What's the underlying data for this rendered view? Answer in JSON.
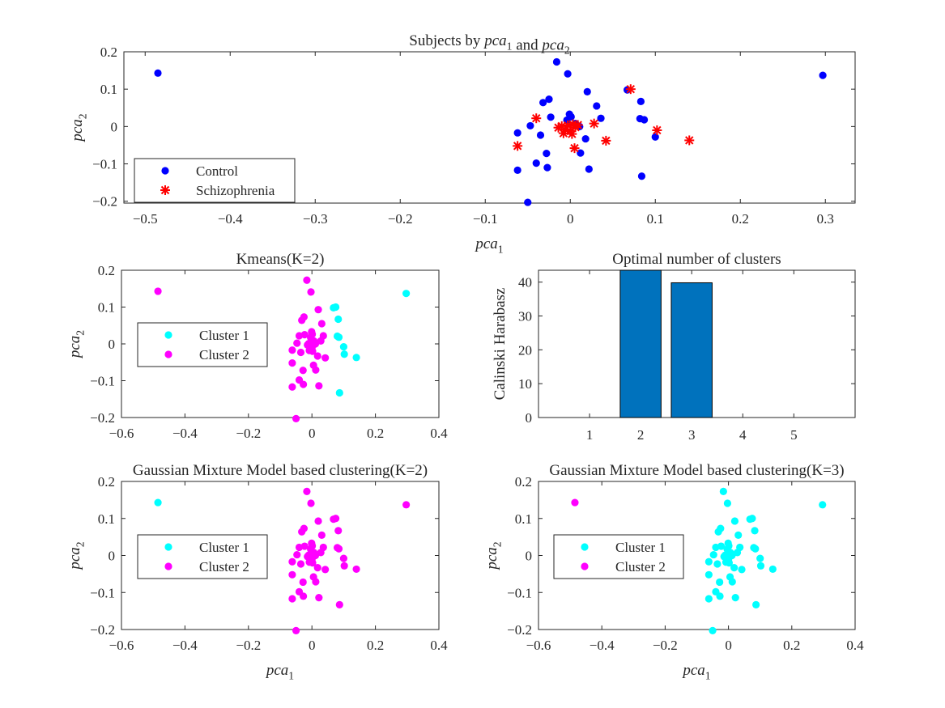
{
  "chart_data": [
    {
      "id": "top",
      "type": "scatter",
      "title": "Subjects by pca1 and pca2",
      "xlabel": "pca1",
      "ylabel": "pca2",
      "xlim": [
        -0.525,
        0.335
      ],
      "ylim": [
        -0.205,
        0.2
      ],
      "xticks": [
        -0.5,
        -0.4,
        -0.3,
        -0.2,
        -0.1,
        0,
        0.1,
        0.2,
        0.3
      ],
      "yticks": [
        -0.2,
        -0.1,
        0,
        0.1,
        0.2
      ],
      "legend": {
        "position": "bottom-left",
        "entries": [
          "Control",
          "Schizophrenia"
        ]
      },
      "series": [
        {
          "name": "Control",
          "marker": "dot",
          "color": "#0000ff",
          "x": [
            -0.485,
            -0.016,
            -0.003,
            0.02,
            0.067,
            0.083,
            -0.025,
            0.031,
            -0.032,
            -0.062,
            -0.047,
            -0.023,
            -0.035,
            -0.001,
            0.001,
            -0.004,
            0.006,
            0.011,
            0.036,
            0.082,
            0.087,
            -0.062,
            -0.028,
            0.018,
            -0.04,
            -0.027,
            0.012,
            0.022,
            0.084,
            0.1,
            0.297,
            -0.05
          ],
          "y": [
            0.143,
            0.173,
            0.141,
            0.093,
            0.098,
            0.067,
            0.073,
            0.055,
            0.064,
            -0.017,
            0.002,
            0.025,
            -0.023,
            0.033,
            0.026,
            0.017,
            0.008,
            0.0,
            0.022,
            0.021,
            0.018,
            -0.117,
            -0.072,
            -0.033,
            -0.098,
            -0.11,
            -0.071,
            -0.114,
            -0.133,
            -0.028,
            0.137,
            -0.203
          ]
        },
        {
          "name": "Schizophrenia",
          "marker": "asterisk",
          "color": "#ff0000",
          "x": [
            0.071,
            -0.04,
            -0.062,
            -0.014,
            -0.01,
            -0.006,
            -0.003,
            0.0,
            0.003,
            0.006,
            0.009,
            -0.008,
            0.002,
            0.028,
            0.005,
            0.042,
            0.102,
            0.14
          ],
          "y": [
            0.1,
            0.022,
            -0.052,
            -0.003,
            0.001,
            -0.008,
            0.003,
            -0.012,
            0.006,
            -0.002,
            0.004,
            -0.018,
            -0.02,
            0.008,
            -0.058,
            -0.038,
            -0.01,
            -0.037
          ]
        }
      ]
    },
    {
      "id": "kmeans",
      "type": "scatter",
      "title": "Kmeans(K=2)",
      "xlabel": "",
      "ylabel": "pca2",
      "xlim": [
        -0.6,
        0.4
      ],
      "ylim": [
        -0.2,
        0.2
      ],
      "xticks": [
        -0.6,
        -0.4,
        -0.2,
        0,
        0.2,
        0.4
      ],
      "yticks": [
        -0.2,
        -0.1,
        0,
        0.1,
        0.2
      ],
      "legend": {
        "position": "left",
        "entries": [
          "Cluster 1",
          "Cluster 2"
        ]
      },
      "series": [
        {
          "name": "Cluster 1",
          "color": "#00ffff",
          "x": [
            0.068,
            0.075,
            0.083,
            0.08,
            0.085,
            0.1,
            0.102,
            0.14,
            0.297,
            0.087
          ],
          "y": [
            0.098,
            0.1,
            0.067,
            0.021,
            0.018,
            -0.008,
            -0.028,
            -0.037,
            0.137,
            -0.133
          ]
        },
        {
          "name": "Cluster 2",
          "color": "#ff00ff",
          "x": [
            -0.485,
            -0.016,
            -0.003,
            0.02,
            -0.025,
            0.031,
            -0.032,
            -0.062,
            -0.047,
            -0.023,
            -0.035,
            -0.001,
            0.001,
            -0.004,
            0.006,
            0.011,
            0.036,
            -0.062,
            -0.028,
            0.018,
            -0.04,
            -0.027,
            0.012,
            0.022,
            -0.05,
            -0.04,
            -0.062,
            -0.014,
            -0.01,
            -0.006,
            -0.003,
            0.0,
            0.003,
            0.006,
            0.009,
            -0.008,
            0.002,
            0.028,
            0.005,
            0.042
          ],
          "y": [
            0.143,
            0.173,
            0.141,
            0.093,
            0.073,
            0.055,
            0.064,
            -0.017,
            0.002,
            0.025,
            -0.023,
            0.033,
            0.026,
            0.017,
            0.008,
            0.0,
            0.022,
            -0.117,
            -0.072,
            -0.033,
            -0.098,
            -0.11,
            -0.071,
            -0.114,
            -0.203,
            0.022,
            -0.052,
            -0.003,
            0.001,
            -0.008,
            0.003,
            -0.012,
            0.006,
            -0.002,
            0.004,
            -0.018,
            -0.02,
            0.008,
            -0.058,
            -0.038
          ]
        }
      ]
    },
    {
      "id": "optimal",
      "type": "bar",
      "title": "Optimal number of clusters",
      "xlabel": "",
      "ylabel": "Calinski Harabasz",
      "xlim": [
        0,
        6.2
      ],
      "ylim": [
        0,
        43.5
      ],
      "categories": [
        "1",
        "2",
        "3",
        "4",
        "5"
      ],
      "yticks": [
        0,
        10,
        20,
        30,
        40
      ],
      "values": [
        0,
        44,
        39.8,
        0,
        0
      ],
      "color": "#0072bd"
    },
    {
      "id": "gmm2",
      "type": "scatter",
      "title": "Gaussian Mixture Model based clustering(K=2)",
      "xlabel": "pca1",
      "ylabel": "pca2",
      "xlim": [
        -0.6,
        0.4
      ],
      "ylim": [
        -0.2,
        0.2
      ],
      "xticks": [
        -0.6,
        -0.4,
        -0.2,
        0,
        0.2,
        0.4
      ],
      "yticks": [
        -0.2,
        -0.1,
        0,
        0.1,
        0.2
      ],
      "legend": {
        "position": "left",
        "entries": [
          "Cluster 1",
          "Cluster 2"
        ]
      },
      "series": [
        {
          "name": "Cluster 1",
          "color": "#00ffff",
          "x": [
            -0.485
          ],
          "y": [
            0.143
          ]
        },
        {
          "name": "Cluster 2",
          "color": "#ff00ff",
          "x": [
            -0.016,
            -0.003,
            0.02,
            0.068,
            0.075,
            0.083,
            0.08,
            0.085,
            0.1,
            0.102,
            0.14,
            0.297,
            0.087,
            -0.025,
            0.031,
            -0.032,
            -0.062,
            -0.047,
            -0.023,
            -0.035,
            -0.001,
            0.001,
            -0.004,
            0.006,
            0.011,
            0.036,
            -0.062,
            -0.028,
            0.018,
            -0.04,
            -0.027,
            0.012,
            0.022,
            -0.05,
            -0.04,
            -0.062,
            -0.014,
            -0.01,
            -0.006,
            -0.003,
            0.0,
            0.003,
            0.006,
            0.009,
            -0.008,
            0.002,
            0.028,
            0.005,
            0.042
          ],
          "y": [
            0.173,
            0.141,
            0.093,
            0.098,
            0.1,
            0.067,
            0.021,
            0.018,
            -0.008,
            -0.028,
            -0.037,
            0.137,
            -0.133,
            0.073,
            0.055,
            0.064,
            -0.017,
            0.002,
            0.025,
            -0.023,
            0.033,
            0.026,
            0.017,
            0.008,
            0.0,
            0.022,
            -0.117,
            -0.072,
            -0.033,
            -0.098,
            -0.11,
            -0.071,
            -0.114,
            -0.203,
            0.022,
            -0.052,
            -0.003,
            0.001,
            -0.008,
            0.003,
            -0.012,
            0.006,
            -0.002,
            0.004,
            -0.018,
            -0.02,
            0.008,
            -0.058,
            -0.038
          ]
        }
      ]
    },
    {
      "id": "gmm3",
      "type": "scatter",
      "title": "Gaussian Mixture Model based clustering(K=3)",
      "xlabel": "pca1",
      "ylabel": "pca2",
      "xlim": [
        -0.6,
        0.4
      ],
      "ylim": [
        -0.2,
        0.2
      ],
      "xticks": [
        -0.6,
        -0.4,
        -0.2,
        0,
        0.2,
        0.4
      ],
      "yticks": [
        -0.2,
        -0.1,
        0,
        0.1,
        0.2
      ],
      "legend": {
        "position": "left",
        "entries": [
          "Cluster 1",
          "Cluster 2"
        ]
      },
      "series": [
        {
          "name": "Cluster 1",
          "color": "#00ffff",
          "x": [
            -0.016,
            -0.003,
            0.02,
            0.068,
            0.075,
            0.083,
            0.08,
            0.085,
            0.1,
            0.102,
            0.14,
            0.297,
            0.087,
            -0.025,
            0.031,
            -0.032,
            -0.062,
            -0.047,
            -0.023,
            -0.035,
            -0.001,
            0.001,
            -0.004,
            0.006,
            0.011,
            0.036,
            -0.062,
            -0.028,
            0.018,
            -0.04,
            -0.027,
            0.012,
            0.022,
            -0.05,
            -0.04,
            -0.062,
            -0.014,
            -0.01,
            -0.006,
            -0.003,
            0.0,
            0.003,
            0.006,
            0.009,
            -0.008,
            0.002,
            0.028,
            0.005,
            0.042
          ],
          "y": [
            0.173,
            0.141,
            0.093,
            0.098,
            0.1,
            0.067,
            0.021,
            0.018,
            -0.008,
            -0.028,
            -0.037,
            0.137,
            -0.133,
            0.073,
            0.055,
            0.064,
            -0.017,
            0.002,
            0.025,
            -0.023,
            0.033,
            0.026,
            0.017,
            0.008,
            0.0,
            0.022,
            -0.117,
            -0.072,
            -0.033,
            -0.098,
            -0.11,
            -0.071,
            -0.114,
            -0.203,
            0.022,
            -0.052,
            -0.003,
            0.001,
            -0.008,
            0.003,
            -0.012,
            0.006,
            -0.002,
            0.004,
            -0.018,
            -0.02,
            0.008,
            -0.058,
            -0.038
          ]
        },
        {
          "name": "Cluster 2",
          "color": "#ff00ff",
          "x": [
            -0.485
          ],
          "y": [
            0.143
          ]
        }
      ]
    }
  ]
}
